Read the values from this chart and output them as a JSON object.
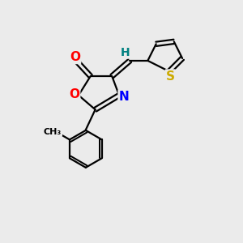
{
  "background_color": "#ebebeb",
  "bond_color": "#000000",
  "atom_colors": {
    "O": "#ff0000",
    "N": "#0000ff",
    "S": "#ccaa00",
    "H": "#008080",
    "C": "#000000"
  },
  "figsize": [
    3.0,
    3.0
  ],
  "dpi": 100
}
